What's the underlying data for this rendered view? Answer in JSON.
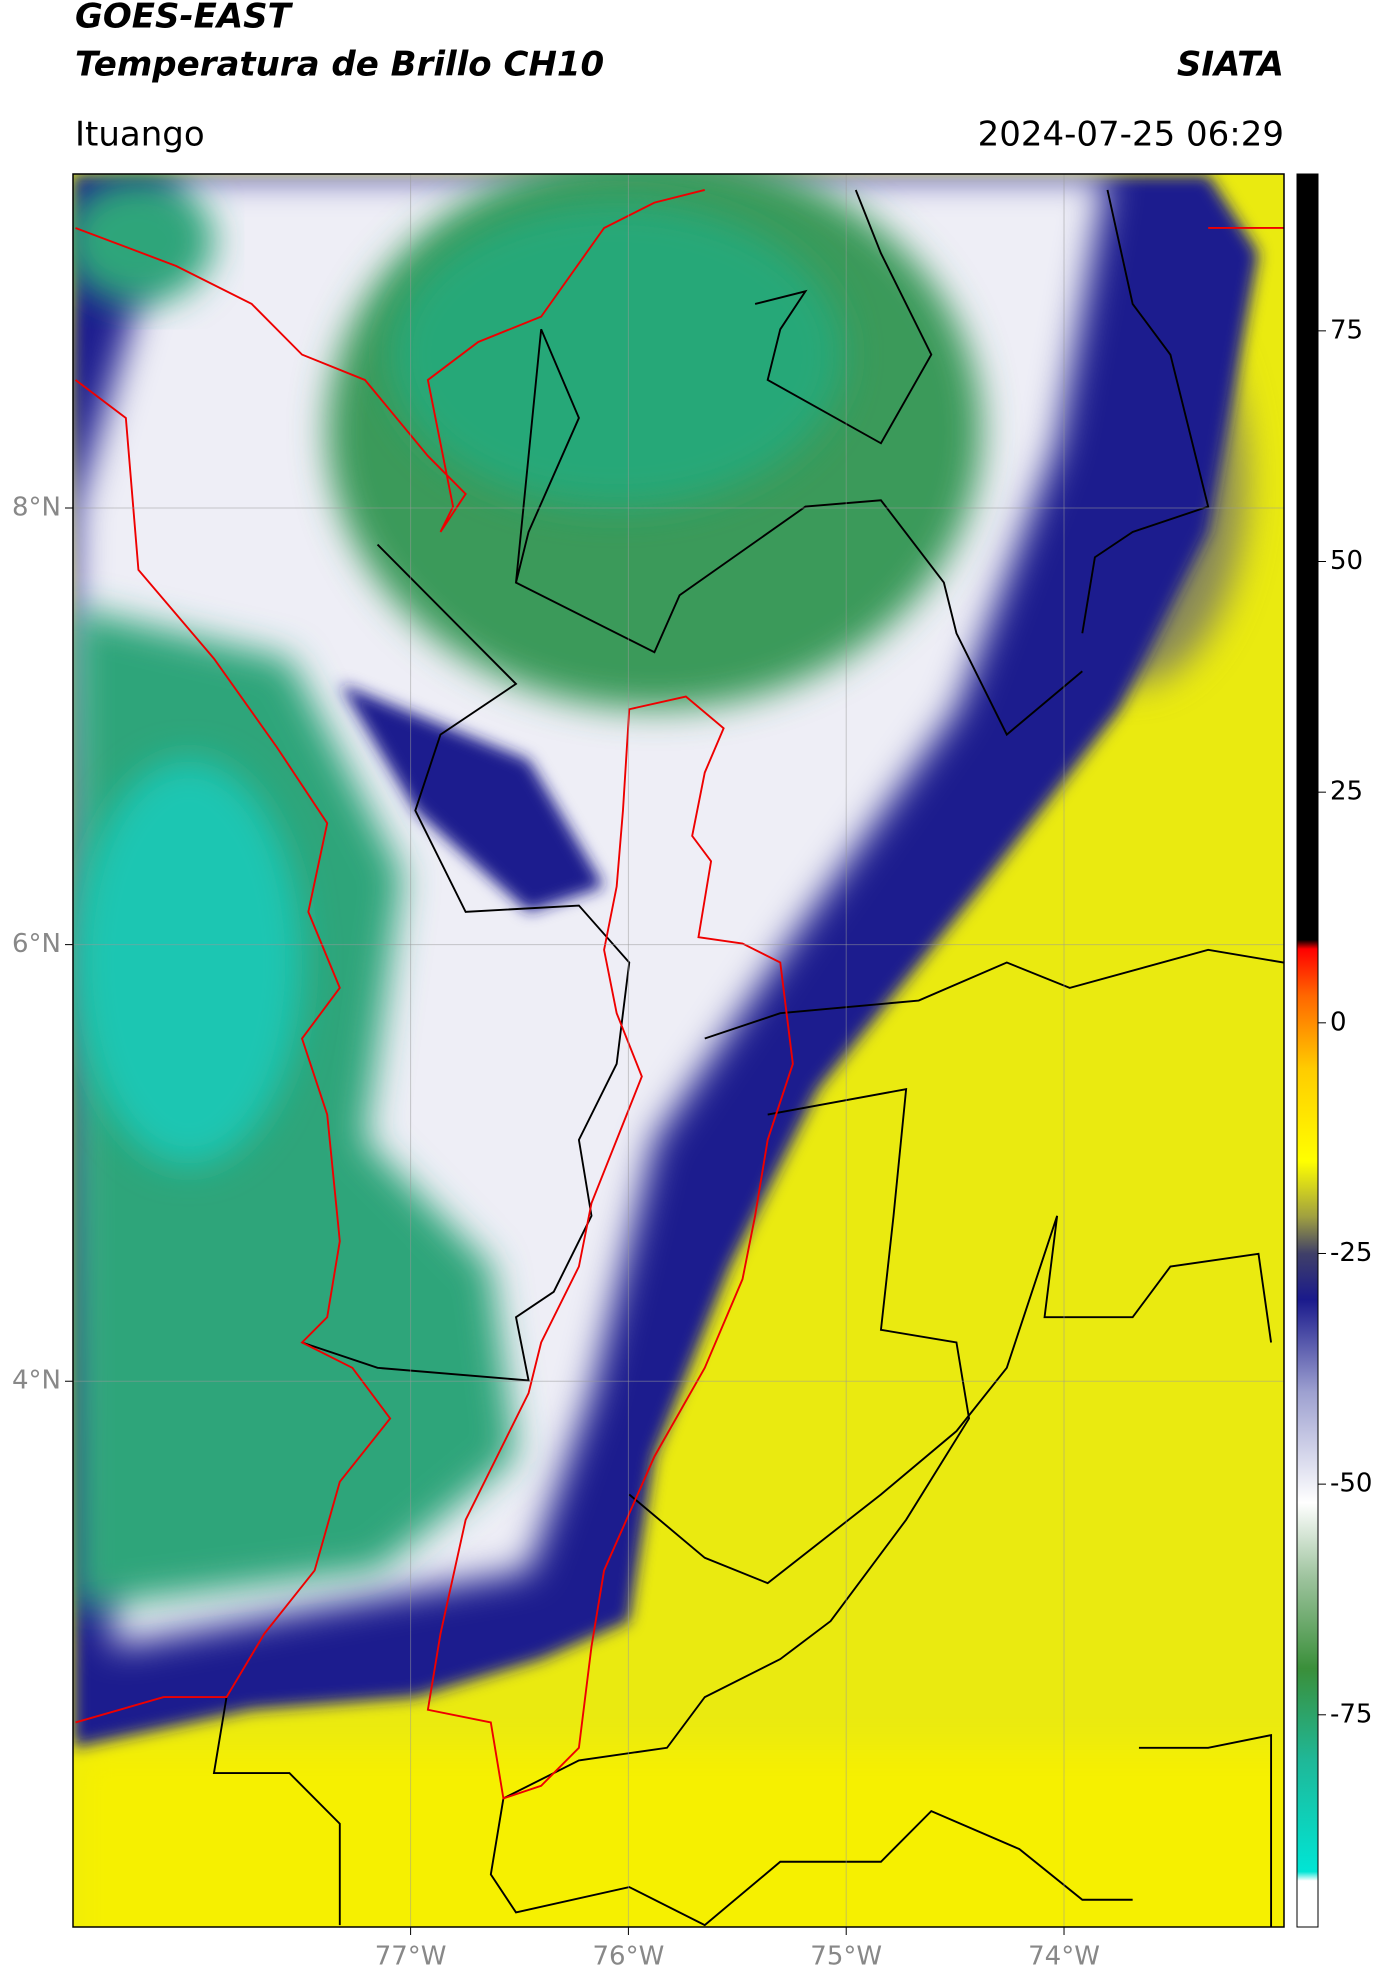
{
  "header": {
    "title": "GOES-EAST",
    "subtitle": "Temperatura de Brillo CH10",
    "brand": "SIATA",
    "location": "Ituango",
    "timestamp": "2024-07-25 06:29"
  },
  "map": {
    "xlim": [
      -78.55,
      -72.99
    ],
    "ylim": [
      1.5,
      9.53
    ],
    "xticks": [
      {
        "value": -77,
        "label": "77°W"
      },
      {
        "value": -76,
        "label": "76°W"
      },
      {
        "value": -75,
        "label": "75°W"
      },
      {
        "value": -74,
        "label": "74°W"
      }
    ],
    "yticks": [
      {
        "value": 8,
        "label": "8°N"
      },
      {
        "value": 6,
        "label": "6°N"
      },
      {
        "value": 4,
        "label": "4°N"
      }
    ],
    "grid": true
  },
  "colorbar": {
    "lim": [
      -98,
      92
    ],
    "ticks": [
      75,
      50,
      25,
      0,
      -25,
      -50,
      -75
    ],
    "colormap": [
      {
        "value": -98,
        "color": "#ffffff"
      },
      {
        "value": -93,
        "color": "#ffffff"
      },
      {
        "value": -92,
        "color": "#00e5d5"
      },
      {
        "value": -80,
        "color": "#1fb898"
      },
      {
        "value": -70,
        "color": "#3a8f3a"
      },
      {
        "value": -60,
        "color": "#9fc49f"
      },
      {
        "value": -52,
        "color": "#ffffff"
      },
      {
        "value": -40,
        "color": "#9da0d0"
      },
      {
        "value": -30,
        "color": "#1a1a8c"
      },
      {
        "value": -25,
        "color": "#404068"
      },
      {
        "value": -21,
        "color": "#a0a040"
      },
      {
        "value": -15,
        "color": "#ffff00"
      },
      {
        "value": -5,
        "color": "#ffcc00"
      },
      {
        "value": 3,
        "color": "#ff6600"
      },
      {
        "value": 8,
        "color": "#ff0000"
      },
      {
        "value": 9,
        "color": "#000000"
      },
      {
        "value": 92,
        "color": "#000000"
      }
    ]
  }
}
